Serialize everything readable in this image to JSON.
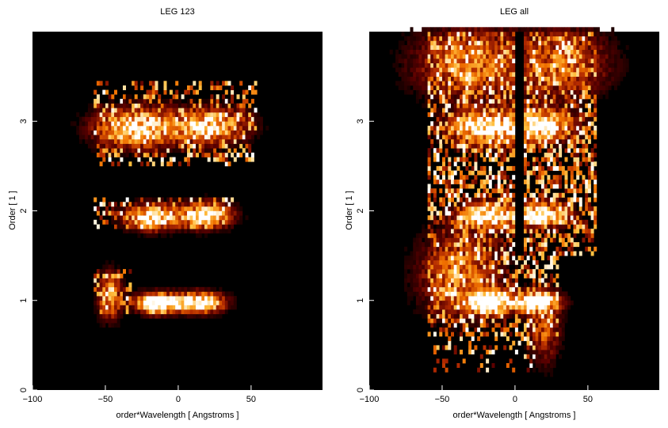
{
  "chart_data": [
    {
      "type": "heatmap",
      "title": "LEG 123",
      "xlabel": "order*Wavelength [ Angstroms ]",
      "ylabel": "Order [ 1 ]",
      "xlim": [
        -100,
        99
      ],
      "ylim": [
        0,
        4
      ],
      "xticks": [
        "−100",
        "−50",
        "0",
        "50"
      ],
      "yticks": [
        "0",
        "1",
        "2",
        "3"
      ],
      "background": "#000000",
      "colormap": [
        "#000000",
        "#5a0000",
        "#b22a00",
        "#f07000",
        "#ffc040",
        "#ffffff"
      ],
      "blobs": [
        {
          "x": -15,
          "y": 0.97,
          "sx": 9,
          "sy": 0.07,
          "a": 1.6
        },
        {
          "x": 14,
          "y": 0.98,
          "sx": 11,
          "sy": 0.07,
          "a": 1.4
        },
        {
          "x": -47,
          "y": 1.05,
          "sx": 5,
          "sy": 0.16,
          "a": 0.8
        },
        {
          "x": -18,
          "y": 1.93,
          "sx": 12,
          "sy": 0.09,
          "a": 1.1
        },
        {
          "x": 18,
          "y": 1.95,
          "sx": 12,
          "sy": 0.09,
          "a": 1.1
        },
        {
          "x": -28,
          "y": 2.93,
          "sx": 18,
          "sy": 0.14,
          "a": 1.1
        },
        {
          "x": 22,
          "y": 2.95,
          "sx": 16,
          "sy": 0.12,
          "a": 1.0
        }
      ],
      "noise_regions": [
        {
          "x0": -58,
          "x1": -33,
          "y0": 0.85,
          "y1": 1.35,
          "p": 0.35
        },
        {
          "x0": -58,
          "x1": 37,
          "y0": 1.78,
          "y1": 2.15,
          "p": 0.3
        },
        {
          "x0": -58,
          "x1": 53,
          "y0": 2.52,
          "y1": 3.45,
          "p": 0.35
        }
      ]
    },
    {
      "type": "heatmap",
      "title": "LEG all",
      "xlabel": "order*Wavelength [ Angstroms ]",
      "ylabel": "Order [ 1 ]",
      "xlim": [
        -100,
        99
      ],
      "ylim": [
        0,
        4
      ],
      "xticks": [
        "−100",
        "−50",
        "0",
        "50"
      ],
      "yticks": [
        "0",
        "1",
        "2",
        "3"
      ],
      "background": "#000000",
      "colormap": [
        "#000000",
        "#5a0000",
        "#b22a00",
        "#f07000",
        "#ffc040",
        "#ffffff"
      ],
      "blobs": [
        {
          "x": -18,
          "y": 0.98,
          "sx": 10,
          "sy": 0.08,
          "a": 1.6
        },
        {
          "x": 14,
          "y": 0.99,
          "sx": 10,
          "sy": 0.07,
          "a": 1.4
        },
        {
          "x": -38,
          "y": 1.3,
          "sx": 18,
          "sy": 0.3,
          "a": 0.6
        },
        {
          "x": 20,
          "y": 0.7,
          "sx": 7,
          "sy": 0.25,
          "a": 0.5
        },
        {
          "x": -18,
          "y": 1.95,
          "sx": 14,
          "sy": 0.09,
          "a": 1.1
        },
        {
          "x": 18,
          "y": 1.96,
          "sx": 12,
          "sy": 0.09,
          "a": 1.1
        },
        {
          "x": -20,
          "y": 2.93,
          "sx": 16,
          "sy": 0.12,
          "a": 1.2
        },
        {
          "x": 18,
          "y": 2.95,
          "sx": 14,
          "sy": 0.11,
          "a": 1.1
        },
        {
          "x": -30,
          "y": 3.65,
          "sx": 25,
          "sy": 0.25,
          "a": 0.6
        },
        {
          "x": 35,
          "y": 3.65,
          "sx": 20,
          "sy": 0.25,
          "a": 0.5
        }
      ],
      "noise_regions": [
        {
          "x0": -60,
          "x1": 55,
          "y0": 1.5,
          "y1": 4.0,
          "p": 0.55
        },
        {
          "x0": -60,
          "x1": 30,
          "y0": 0.6,
          "y1": 1.5,
          "p": 0.45
        },
        {
          "x0": -55,
          "x1": 20,
          "y0": 0.2,
          "y1": 0.6,
          "p": 0.2
        }
      ],
      "center_gap": {
        "x": 3,
        "y0": 1.48,
        "y1": 4.0
      }
    }
  ]
}
